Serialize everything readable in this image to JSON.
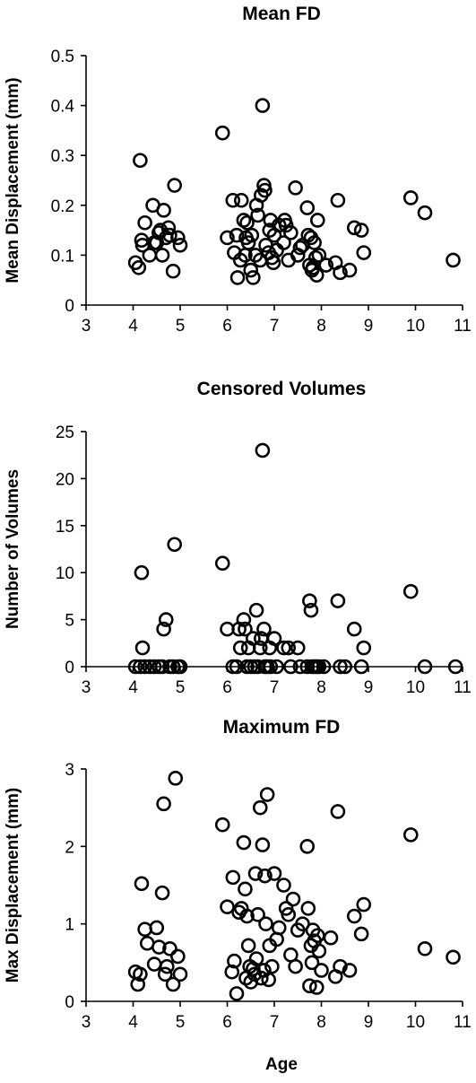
{
  "chart_data": [
    {
      "type": "scatter",
      "title": "Mean FD",
      "xlabel": "",
      "ylabel": "Mean Displacement (mm)",
      "xlim": [
        3,
        11
      ],
      "ylim": [
        0,
        0.5
      ],
      "xticks": [
        "3",
        "4",
        "5",
        "6",
        "7",
        "8",
        "9",
        "10",
        "11"
      ],
      "yticks": [
        "0",
        "0.1",
        "0.2",
        "0.3",
        "0.4",
        "0.5"
      ],
      "grid": false,
      "points": [
        [
          4.05,
          0.085
        ],
        [
          4.12,
          0.075
        ],
        [
          4.15,
          0.29
        ],
        [
          4.18,
          0.13
        ],
        [
          4.2,
          0.12
        ],
        [
          4.25,
          0.165
        ],
        [
          4.35,
          0.1
        ],
        [
          4.42,
          0.2
        ],
        [
          4.45,
          0.125
        ],
        [
          4.5,
          0.125
        ],
        [
          4.55,
          0.145
        ],
        [
          4.58,
          0.15
        ],
        [
          4.62,
          0.1
        ],
        [
          4.65,
          0.19
        ],
        [
          4.7,
          0.135
        ],
        [
          4.75,
          0.155
        ],
        [
          4.78,
          0.14
        ],
        [
          4.85,
          0.068
        ],
        [
          4.88,
          0.24
        ],
        [
          4.95,
          0.135
        ],
        [
          5.0,
          0.12
        ],
        [
          5.9,
          0.345
        ],
        [
          6.0,
          0.135
        ],
        [
          6.12,
          0.21
        ],
        [
          6.15,
          0.105
        ],
        [
          6.2,
          0.14
        ],
        [
          6.22,
          0.055
        ],
        [
          6.28,
          0.09
        ],
        [
          6.3,
          0.21
        ],
        [
          6.35,
          0.17
        ],
        [
          6.38,
          0.1
        ],
        [
          6.4,
          0.135
        ],
        [
          6.42,
          0.165
        ],
        [
          6.45,
          0.125
        ],
        [
          6.5,
          0.07
        ],
        [
          6.52,
          0.14
        ],
        [
          6.55,
          0.055
        ],
        [
          6.6,
          0.1
        ],
        [
          6.62,
          0.2
        ],
        [
          6.65,
          0.18
        ],
        [
          6.7,
          0.09
        ],
        [
          6.72,
          0.22
        ],
        [
          6.75,
          0.4
        ],
        [
          6.78,
          0.24
        ],
        [
          6.8,
          0.23
        ],
        [
          6.82,
          0.12
        ],
        [
          6.88,
          0.105
        ],
        [
          6.9,
          0.15
        ],
        [
          6.92,
          0.17
        ],
        [
          6.95,
          0.095
        ],
        [
          6.98,
          0.085
        ],
        [
          7.0,
          0.14
        ],
        [
          7.05,
          0.11
        ],
        [
          7.1,
          0.16
        ],
        [
          7.2,
          0.125
        ],
        [
          7.22,
          0.17
        ],
        [
          7.25,
          0.16
        ],
        [
          7.3,
          0.09
        ],
        [
          7.35,
          0.145
        ],
        [
          7.45,
          0.235
        ],
        [
          7.5,
          0.1
        ],
        [
          7.55,
          0.115
        ],
        [
          7.6,
          0.12
        ],
        [
          7.7,
          0.195
        ],
        [
          7.72,
          0.14
        ],
        [
          7.75,
          0.08
        ],
        [
          7.78,
          0.135
        ],
        [
          7.8,
          0.07
        ],
        [
          7.82,
          0.075
        ],
        [
          7.85,
          0.125
        ],
        [
          7.88,
          0.095
        ],
        [
          7.9,
          0.06
        ],
        [
          7.92,
          0.17
        ],
        [
          7.95,
          0.1
        ],
        [
          8.1,
          0.08
        ],
        [
          8.3,
          0.085
        ],
        [
          8.35,
          0.21
        ],
        [
          8.4,
          0.065
        ],
        [
          8.6,
          0.07
        ],
        [
          8.7,
          0.155
        ],
        [
          8.85,
          0.15
        ],
        [
          8.9,
          0.105
        ],
        [
          9.9,
          0.215
        ],
        [
          10.2,
          0.185
        ],
        [
          10.8,
          0.09
        ]
      ]
    },
    {
      "type": "scatter",
      "title": "Censored Volumes",
      "xlabel": "",
      "ylabel": "Number of Volumes",
      "xlim": [
        3,
        11
      ],
      "ylim": [
        0,
        25
      ],
      "xticks": [
        "3",
        "4",
        "5",
        "6",
        "7",
        "8",
        "9",
        "10",
        "11"
      ],
      "yticks": [
        "0",
        "5",
        "10",
        "15",
        "20",
        "25"
      ],
      "grid": false,
      "points": [
        [
          4.05,
          0
        ],
        [
          4.15,
          0
        ],
        [
          4.18,
          10
        ],
        [
          4.2,
          2
        ],
        [
          4.25,
          0
        ],
        [
          4.35,
          0
        ],
        [
          4.45,
          0
        ],
        [
          4.55,
          0
        ],
        [
          4.62,
          0
        ],
        [
          4.65,
          4
        ],
        [
          4.7,
          5
        ],
        [
          4.78,
          0
        ],
        [
          4.85,
          0
        ],
        [
          4.88,
          13
        ],
        [
          4.95,
          0
        ],
        [
          5.0,
          0
        ],
        [
          5.9,
          11
        ],
        [
          6.0,
          4
        ],
        [
          6.12,
          0
        ],
        [
          6.2,
          0
        ],
        [
          6.25,
          4
        ],
        [
          6.28,
          2
        ],
        [
          6.35,
          5
        ],
        [
          6.38,
          4
        ],
        [
          6.42,
          0
        ],
        [
          6.45,
          2
        ],
        [
          6.5,
          0
        ],
        [
          6.55,
          3
        ],
        [
          6.58,
          0
        ],
        [
          6.62,
          6
        ],
        [
          6.65,
          0
        ],
        [
          6.7,
          2
        ],
        [
          6.72,
          3
        ],
        [
          6.75,
          23
        ],
        [
          6.78,
          4
        ],
        [
          6.8,
          0
        ],
        [
          6.85,
          0
        ],
        [
          6.9,
          2
        ],
        [
          6.92,
          0
        ],
        [
          7.0,
          3
        ],
        [
          7.05,
          0
        ],
        [
          7.2,
          2
        ],
        [
          7.3,
          2
        ],
        [
          7.35,
          0
        ],
        [
          7.5,
          2
        ],
        [
          7.55,
          0
        ],
        [
          7.7,
          0
        ],
        [
          7.75,
          7
        ],
        [
          7.78,
          6
        ],
        [
          7.8,
          0
        ],
        [
          7.85,
          0
        ],
        [
          7.9,
          0
        ],
        [
          7.95,
          0
        ],
        [
          8.05,
          0
        ],
        [
          8.35,
          7
        ],
        [
          8.4,
          0
        ],
        [
          8.5,
          0
        ],
        [
          8.7,
          4
        ],
        [
          8.85,
          0
        ],
        [
          8.9,
          2
        ],
        [
          9.9,
          8
        ],
        [
          10.2,
          0
        ],
        [
          10.85,
          0
        ]
      ]
    },
    {
      "type": "scatter",
      "title": "Maximum FD",
      "xlabel": "Age",
      "ylabel": "Max Displacement (mm)",
      "xlim": [
        3,
        11
      ],
      "ylim": [
        0,
        3
      ],
      "xticks": [
        "3",
        "4",
        "5",
        "6",
        "7",
        "8",
        "9",
        "10",
        "11"
      ],
      "yticks": [
        "0",
        "1",
        "2",
        "3"
      ],
      "grid": false,
      "points": [
        [
          4.05,
          0.38
        ],
        [
          4.1,
          0.22
        ],
        [
          4.15,
          0.35
        ],
        [
          4.18,
          1.52
        ],
        [
          4.25,
          0.93
        ],
        [
          4.3,
          0.75
        ],
        [
          4.45,
          0.48
        ],
        [
          4.5,
          0.95
        ],
        [
          4.55,
          0.7
        ],
        [
          4.62,
          1.4
        ],
        [
          4.65,
          2.55
        ],
        [
          4.68,
          0.35
        ],
        [
          4.72,
          0.45
        ],
        [
          4.78,
          0.68
        ],
        [
          4.85,
          0.22
        ],
        [
          4.9,
          2.88
        ],
        [
          4.95,
          0.58
        ],
        [
          5.0,
          0.35
        ],
        [
          5.9,
          2.28
        ],
        [
          6.0,
          1.22
        ],
        [
          6.1,
          0.38
        ],
        [
          6.12,
          1.6
        ],
        [
          6.15,
          0.52
        ],
        [
          6.2,
          0.1
        ],
        [
          6.25,
          1.15
        ],
        [
          6.3,
          1.2
        ],
        [
          6.35,
          2.05
        ],
        [
          6.38,
          1.45
        ],
        [
          6.4,
          0.3
        ],
        [
          6.42,
          1.1
        ],
        [
          6.45,
          0.72
        ],
        [
          6.48,
          0.45
        ],
        [
          6.5,
          0.25
        ],
        [
          6.55,
          0.42
        ],
        [
          6.58,
          0.35
        ],
        [
          6.6,
          1.65
        ],
        [
          6.62,
          0.55
        ],
        [
          6.65,
          1.12
        ],
        [
          6.7,
          2.5
        ],
        [
          6.72,
          0.3
        ],
        [
          6.75,
          2.02
        ],
        [
          6.78,
          0.4
        ],
        [
          6.8,
          1.62
        ],
        [
          6.82,
          1.0
        ],
        [
          6.85,
          2.67
        ],
        [
          6.88,
          0.28
        ],
        [
          6.9,
          0.72
        ],
        [
          6.95,
          0.45
        ],
        [
          7.0,
          1.65
        ],
        [
          7.05,
          0.8
        ],
        [
          7.1,
          0.95
        ],
        [
          7.2,
          1.5
        ],
        [
          7.25,
          1.2
        ],
        [
          7.3,
          1.12
        ],
        [
          7.35,
          0.6
        ],
        [
          7.4,
          1.32
        ],
        [
          7.45,
          0.45
        ],
        [
          7.5,
          0.92
        ],
        [
          7.6,
          1.0
        ],
        [
          7.7,
          2.0
        ],
        [
          7.72,
          1.2
        ],
        [
          7.75,
          0.2
        ],
        [
          7.78,
          0.72
        ],
        [
          7.8,
          0.5
        ],
        [
          7.82,
          0.92
        ],
        [
          7.85,
          0.78
        ],
        [
          7.9,
          0.18
        ],
        [
          7.92,
          0.85
        ],
        [
          7.95,
          0.65
        ],
        [
          8.0,
          0.4
        ],
        [
          8.2,
          0.82
        ],
        [
          8.3,
          0.32
        ],
        [
          8.35,
          2.45
        ],
        [
          8.4,
          0.45
        ],
        [
          8.6,
          0.4
        ],
        [
          8.7,
          1.1
        ],
        [
          8.85,
          0.87
        ],
        [
          8.9,
          1.25
        ],
        [
          9.9,
          2.15
        ],
        [
          10.2,
          0.68
        ],
        [
          10.8,
          0.57
        ]
      ]
    }
  ]
}
